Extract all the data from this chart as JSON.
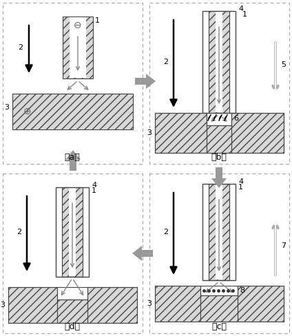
{
  "bg_color": "#ffffff",
  "hatch_pattern": "///",
  "hatch_fc": "#d8d8d8",
  "hatch_ec": "#444444",
  "panel_border_color": "#aaaaaa",
  "panel_border_lw": 1.0,
  "inter_arrow_color": "#888888",
  "panels": {
    "a": [
      4,
      4,
      203,
      234
    ],
    "b": [
      217,
      4,
      203,
      234
    ],
    "d": [
      4,
      252,
      203,
      232
    ],
    "c": [
      217,
      252,
      203,
      232
    ]
  },
  "big_arrow_color": "#999999"
}
